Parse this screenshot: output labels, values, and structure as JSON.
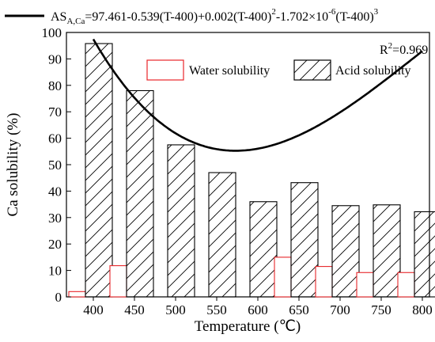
{
  "chart_data": {
    "type": "bar",
    "xlabel": "Temperature (℃)",
    "ylabel": "Ca solubility (%)",
    "categories": [
      "400",
      "450",
      "500",
      "550",
      "600",
      "650",
      "700",
      "750",
      "800"
    ],
    "ylim": [
      0,
      100
    ],
    "yticks": [
      "0",
      "10",
      "20",
      "30",
      "40",
      "50",
      "60",
      "70",
      "80",
      "90",
      "100"
    ],
    "series": [
      {
        "name": "Water solubility",
        "values": [
          2.0,
          11.8,
          0,
          0,
          0,
          15.0,
          11.5,
          9.2,
          9.2
        ],
        "color": "#e8262a",
        "pattern": "none"
      },
      {
        "name": "Acid solubility",
        "values": [
          95.8,
          78.0,
          57.5,
          47.0,
          36.0,
          43.2,
          34.5,
          34.8,
          32.2
        ],
        "color": "#000000",
        "pattern": "hatch"
      }
    ],
    "fit": {
      "type": "line",
      "equation": {
        "lhs": "AS",
        "lhs_sub": "A,Ca",
        "part1": "=97.461-0.539(T-400)+0.002(T-400)",
        "sup1": "2",
        "part2": "-1.702×10",
        "sup2": "-6",
        "part3": "(T-400)",
        "sup3": "3"
      },
      "coefficients": [
        97.461,
        -0.539,
        0.002,
        -1.702e-06
      ],
      "x_offset": 400,
      "x_range": [
        400,
        800
      ],
      "color": "#000000"
    },
    "r2": {
      "base": "R",
      "sup": "2",
      "value": "=0.969"
    },
    "grid": false,
    "legend": "top"
  }
}
